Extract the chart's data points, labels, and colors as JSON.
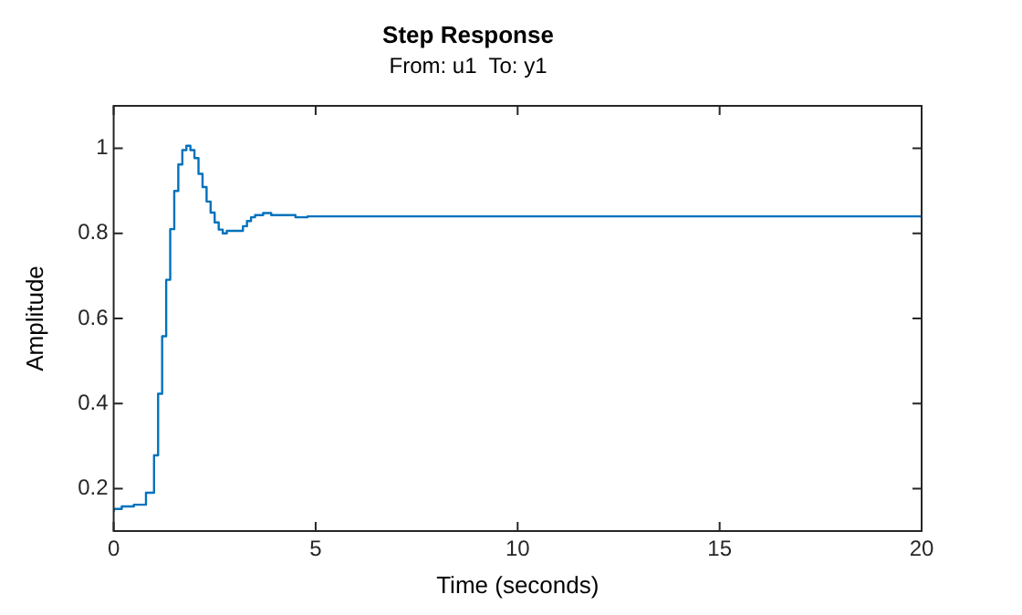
{
  "chart_data": {
    "type": "step",
    "title": "Step Response",
    "subtitle": "From: u1  To: y1",
    "xlabel": "Time (seconds)",
    "ylabel": "Amplitude",
    "xlim": [
      0,
      20
    ],
    "xticks": [
      0,
      5,
      10,
      15,
      20
    ],
    "ylim": [
      0.1,
      1.1
    ],
    "yticks": [
      0.2,
      0.4,
      0.6,
      0.8,
      1
    ],
    "grid": false,
    "legend": false,
    "marker": "none",
    "line_style": "solid",
    "series": [
      {
        "color": "#0072bd",
        "x": [
          0,
          0.2,
          0.5,
          0.8,
          1.0,
          1.1,
          1.2,
          1.3,
          1.4,
          1.5,
          1.6,
          1.7,
          1.8,
          1.9,
          2.0,
          2.1,
          2.2,
          2.3,
          2.4,
          2.5,
          2.6,
          2.7,
          2.8,
          3.2,
          3.3,
          3.4,
          3.5,
          3.7,
          3.9,
          4.5,
          4.8,
          5.3,
          20
        ],
        "values": [
          0.145,
          0.152,
          0.158,
          0.162,
          0.19,
          0.278,
          0.423,
          0.558,
          0.691,
          0.81,
          0.9,
          0.962,
          0.996,
          1.006,
          0.996,
          0.977,
          0.94,
          0.909,
          0.875,
          0.849,
          0.826,
          0.809,
          0.8,
          0.806,
          0.817,
          0.829,
          0.838,
          0.843,
          0.848,
          0.843,
          0.838,
          0.84,
          0.84
        ]
      }
    ]
  }
}
